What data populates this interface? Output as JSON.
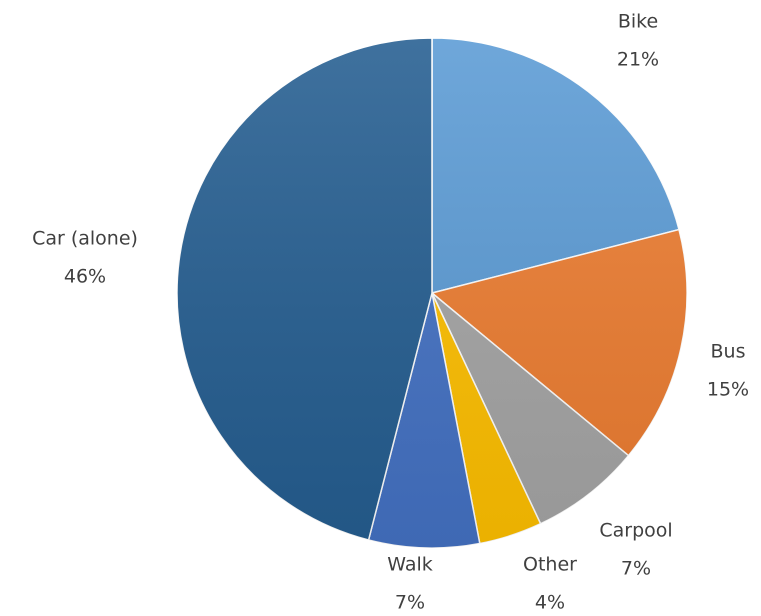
{
  "chart_data": {
    "type": "pie",
    "categories": [
      "Bike",
      "Bus",
      "Carpool",
      "Other",
      "Walk",
      "Car (alone)"
    ],
    "values": [
      21,
      15,
      7,
      4,
      7,
      46
    ],
    "value_labels": [
      "21%",
      "15%",
      "7%",
      "4%",
      "7%",
      "46%"
    ],
    "colors": [
      "#5b9bd5",
      "#ed7d31",
      "#a5a5a5",
      "#ffc000",
      "#4472c4",
      "#255e91"
    ]
  }
}
